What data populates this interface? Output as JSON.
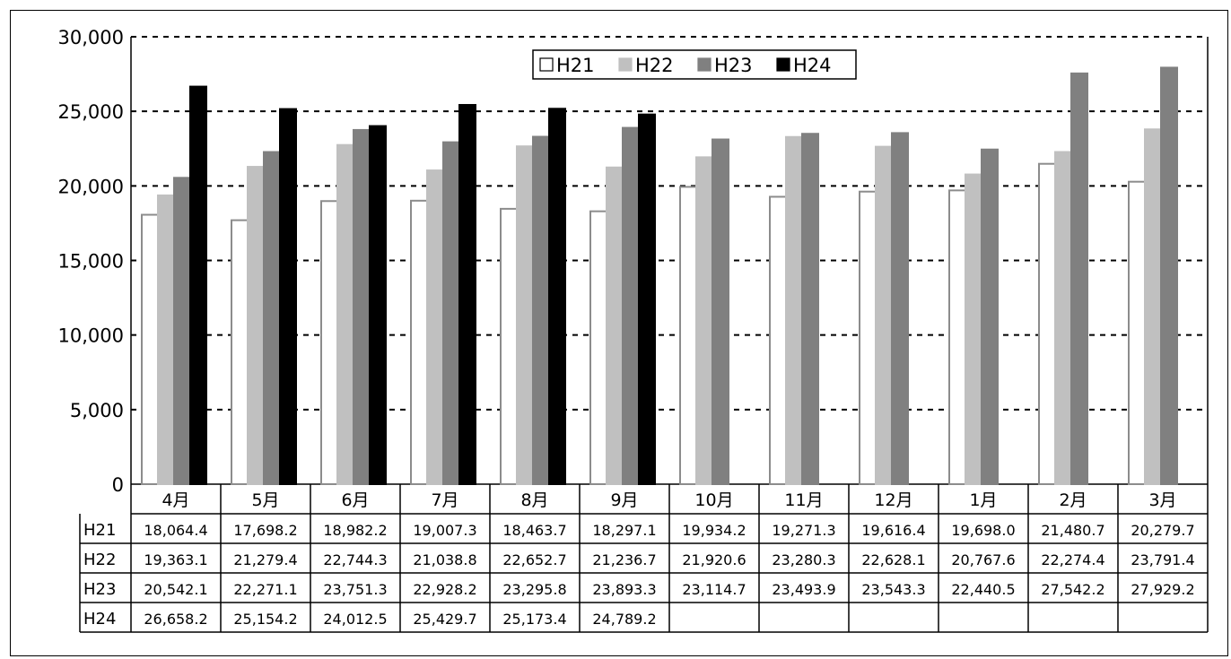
{
  "title": "",
  "unit_label": "",
  "chart_data": {
    "type": "bar",
    "categories": [
      "4月",
      "5月",
      "6月",
      "7月",
      "8月",
      "9月",
      "10月",
      "11月",
      "12月",
      "1月",
      "2月",
      "3月"
    ],
    "ylim": [
      0,
      30000
    ],
    "yticks": [
      "0",
      "5,000",
      "10,000",
      "15,000",
      "20,000",
      "25,000",
      "30,000"
    ],
    "grid": true,
    "legend_position": "top-center",
    "series": [
      {
        "name": "H21",
        "color": "#ffffff",
        "stroke": "#8c8c8c",
        "values": [
          18064.4,
          17698.2,
          18982.2,
          19007.3,
          18463.7,
          18297.1,
          19934.2,
          19271.3,
          19616.4,
          19698.0,
          21480.7,
          20279.7
        ],
        "labels": [
          "18,064.4",
          "17,698.2",
          "18,982.2",
          "19,007.3",
          "18,463.7",
          "18,297.1",
          "19,934.2",
          "19,271.3",
          "19,616.4",
          "19,698.0",
          "21,480.7",
          "20,279.7"
        ]
      },
      {
        "name": "H22",
        "color": "#c0c0c0",
        "stroke": "#c0c0c0",
        "values": [
          19363.1,
          21279.4,
          22744.3,
          21038.8,
          22652.7,
          21236.7,
          21920.6,
          23280.3,
          22628.1,
          20767.6,
          22274.4,
          23791.4
        ],
        "labels": [
          "19,363.1",
          "21,279.4",
          "22,744.3",
          "21,038.8",
          "22,652.7",
          "21,236.7",
          "21,920.6",
          "23,280.3",
          "22,628.1",
          "20,767.6",
          "22,274.4",
          "23,791.4"
        ]
      },
      {
        "name": "H23",
        "color": "#808080",
        "stroke": "#808080",
        "values": [
          20542.1,
          22271.1,
          23751.3,
          22928.2,
          23295.8,
          23893.3,
          23114.7,
          23493.9,
          23543.3,
          22440.5,
          27542.2,
          27929.2
        ],
        "labels": [
          "20,542.1",
          "22,271.1",
          "23,751.3",
          "22,928.2",
          "23,295.8",
          "23,893.3",
          "23,114.7",
          "23,493.9",
          "23,543.3",
          "22,440.5",
          "27,542.2",
          "27,929.2"
        ]
      },
      {
        "name": "H24",
        "color": "#000000",
        "stroke": "#000000",
        "values": [
          26658.2,
          25154.2,
          24012.5,
          25429.7,
          25173.4,
          24789.2,
          null,
          null,
          null,
          null,
          null,
          null
        ],
        "labels": [
          "26,658.2",
          "25,154.2",
          "24,012.5",
          "25,429.7",
          "25,173.4",
          "24,789.2",
          "",
          "",
          "",
          "",
          "",
          ""
        ]
      }
    ]
  }
}
